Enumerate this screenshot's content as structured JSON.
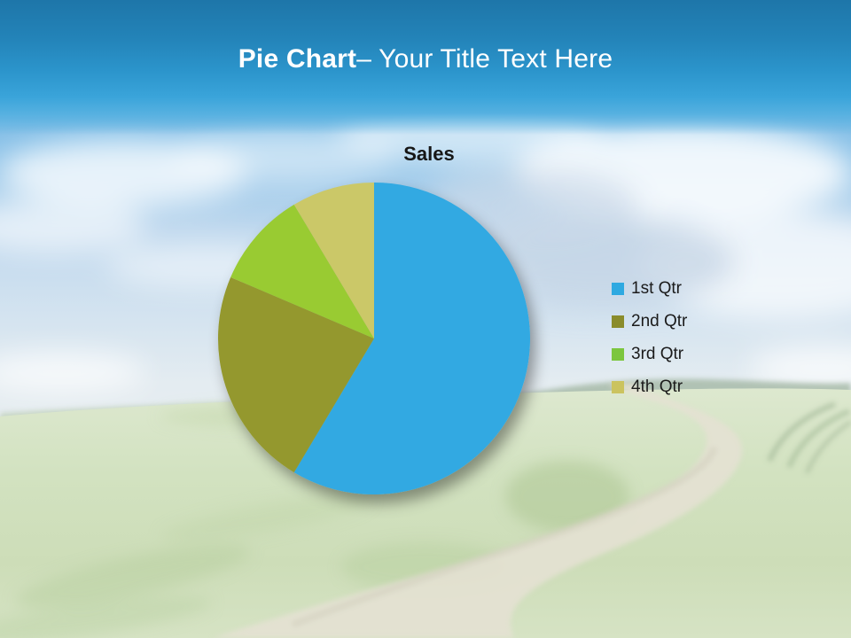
{
  "slide": {
    "header": {
      "title_bold": "Pie Chart",
      "title_regular": "– Your Title Text Here",
      "text_color": "#ffffff",
      "band_top_color": "#1e76a9",
      "band_bottom_color": "#45abe0"
    },
    "background_scene": "grassy meadow with winding dirt road under blue sky with clouds"
  },
  "chart_data": {
    "type": "pie",
    "title": "Sales",
    "categories": [
      "1st Qtr",
      "2nd Qtr",
      "3rd Qtr",
      "4th Qtr"
    ],
    "values": [
      8.2,
      3.2,
      1.4,
      1.2
    ],
    "slice_colors": [
      "#31a9e2",
      "#94982f",
      "#99cb33",
      "#cbc867"
    ],
    "start_angle_deg": 0,
    "direction": "clockwise",
    "legend_position": "right",
    "legend": {
      "items": [
        {
          "label": "1st Qtr",
          "color": "#2ea9e1"
        },
        {
          "label": "2nd Qtr",
          "color": "#8a8c2b"
        },
        {
          "label": "3rd Qtr",
          "color": "#7cc63e"
        },
        {
          "label": "4th Qtr",
          "color": "#cbc35f"
        }
      ]
    }
  }
}
